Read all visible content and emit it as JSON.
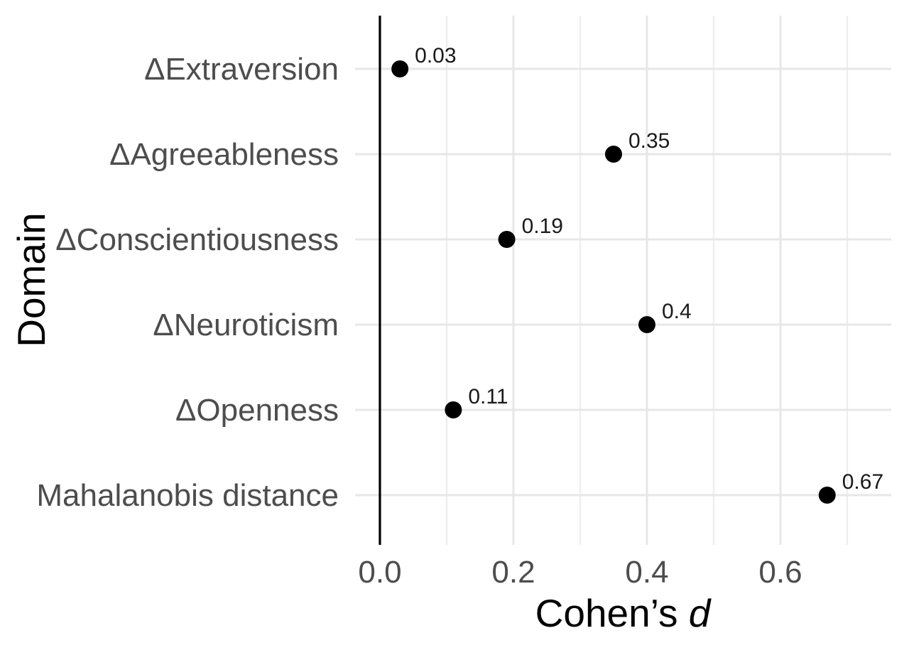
{
  "chart_data": {
    "type": "scatter",
    "subtype": "horizontal-dot-plot",
    "title": "",
    "ylabel": "Domain",
    "xlabel_text": "Cohen’s ",
    "xlabel_italic": "d",
    "categories": [
      "ΔExtraversion",
      "ΔAgreeableness",
      "ΔConscientiousness",
      "ΔNeuroticism",
      "ΔOpenness",
      "Mahalanobis distance"
    ],
    "values": [
      0.03,
      0.35,
      0.19,
      0.4,
      0.11,
      0.67
    ],
    "point_labels": [
      "0.03",
      "0.35",
      "0.19",
      "0.4",
      "0.11",
      "0.67"
    ],
    "x_tick_values": [
      0,
      0.2,
      0.4,
      0.6
    ],
    "x_tick_labels": [
      "0.0",
      "0.2",
      "0.4",
      "0.6"
    ],
    "x_minor_values": [
      0.1,
      0.3,
      0.5,
      0.7
    ],
    "xlim": [
      -0.0372,
      0.766
    ],
    "reference_line_x": 0,
    "grid": "vertical major+minor, horizontal major per category",
    "legend": "none",
    "colors": {
      "point": "#000000",
      "point_label": "#1a1a1a",
      "grid_major": "#e7e7e7",
      "grid_minor": "#eeeeee",
      "axis_text": "#4d4d4d",
      "axis_title": "#000000",
      "reference_line": "#000000",
      "background": "#ffffff"
    }
  }
}
